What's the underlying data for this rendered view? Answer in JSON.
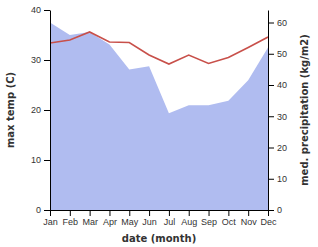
{
  "chart_data": {
    "type": "line",
    "x_label": "date (month)",
    "y_label": "max temp (C)",
    "y2_label": "med. precipitation (kg/m2)",
    "categories": [
      "Jan",
      "Feb",
      "Mar",
      "Apr",
      "May",
      "Jun",
      "Jul",
      "Aug",
      "Sep",
      "Oct",
      "Nov",
      "Dec"
    ],
    "ylim": [
      0,
      40
    ],
    "yticks": [
      0,
      10,
      20,
      30,
      40
    ],
    "y2lim": [
      0,
      64
    ],
    "y2ticks": [
      0,
      10,
      20,
      30,
      40,
      50,
      60
    ],
    "series": [
      {
        "name": "max temp",
        "type": "line",
        "color": "#c8504a",
        "values": [
          33.4,
          34,
          35.6,
          33.6,
          33.5,
          31,
          29.2,
          31,
          29.3,
          30.5,
          32.5,
          34.6
        ]
      },
      {
        "name": "med. precipitation",
        "type": "area",
        "color": "#b0bcf0",
        "axis": "y2",
        "values": [
          60,
          56,
          57,
          53,
          45,
          46,
          31,
          33.5,
          33.5,
          35,
          41.5,
          52
        ]
      }
    ]
  }
}
